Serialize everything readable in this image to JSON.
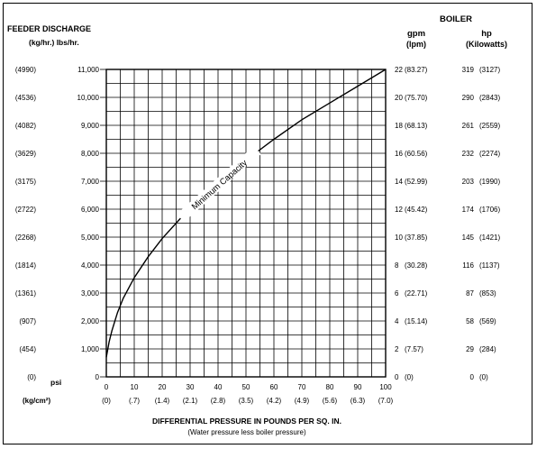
{
  "chart_data": {
    "type": "line",
    "title_left": "FEEDER DISCHARGE",
    "title_left_units": "(kg/hr.)  lbs/hr.",
    "title_right": "BOILER",
    "right_col1_header": "gpm",
    "right_col1_sub": "(lpm)",
    "right_col2_header": "hp",
    "right_col2_sub": "(Kilowatts)",
    "xlabel": "DIFFERENTIAL PRESSURE IN POUNDS PER SQ. IN.",
    "xlabel_sub": "(Water pressure less boiler pressure)",
    "x_unit_label": "psi",
    "x_metric_unit_label": "(kg/cm²)",
    "xlim": [
      0,
      100
    ],
    "ylim": [
      0,
      11000
    ],
    "grid": true,
    "x_ticks": [
      "0",
      "10",
      "20",
      "30",
      "40",
      "50",
      "60",
      "70",
      "80",
      "90",
      "100"
    ],
    "x_ticks_metric": [
      "(0)",
      "(.7)",
      "(1.4)",
      "(2.1)",
      "(2.8)",
      "(3.5)",
      "(4.2)",
      "(4.9)",
      "(5.6)",
      "(6.3)",
      "(7.0)"
    ],
    "y_ticks_lbs": [
      "0",
      "1,000",
      "2,000",
      "3,000",
      "4,000",
      "5,000",
      "6,000",
      "7,000",
      "8,000",
      "9,000",
      "10,000",
      "11,000"
    ],
    "y_ticks_kg": [
      "(0)",
      "(454)",
      "(907)",
      "(1361)",
      "(1814)",
      "(2268)",
      "(2722)",
      "(3175)",
      "(3629)",
      "(4082)",
      "(4536)",
      "(4990)"
    ],
    "right_ticks_gpm": [
      "0",
      "2",
      "4",
      "6",
      "8",
      "10",
      "12",
      "14",
      "16",
      "18",
      "20",
      "22"
    ],
    "right_ticks_lpm": [
      "(0)",
      "(7.57)",
      "(15.14)",
      "(22.71)",
      "(30.28)",
      "(37.85)",
      "(45.42)",
      "(52.99)",
      "(60.56)",
      "(68.13)",
      "(75.70)",
      "(83.27)"
    ],
    "right_ticks_hp": [
      "0",
      "29",
      "58",
      "87",
      "116",
      "145",
      "174",
      "203",
      "232",
      "261",
      "290",
      "319"
    ],
    "right_ticks_kw": [
      "(0)",
      "(284)",
      "(569)",
      "(853)",
      "(1137)",
      "(1421)",
      "(1706)",
      "(1990)",
      "(2274)",
      "(2559)",
      "(2843)",
      "(3127)"
    ],
    "series": [
      {
        "name": "Minimum Capacity",
        "x": [
          0,
          1,
          2,
          4,
          6,
          10,
          15,
          20,
          25,
          30,
          40,
          50,
          60,
          70,
          80,
          90,
          100
        ],
        "y": [
          700,
          1250,
          1650,
          2300,
          2800,
          3550,
          4300,
          4950,
          5500,
          6050,
          6950,
          7750,
          8500,
          9200,
          9800,
          10400,
          11000
        ]
      }
    ]
  }
}
